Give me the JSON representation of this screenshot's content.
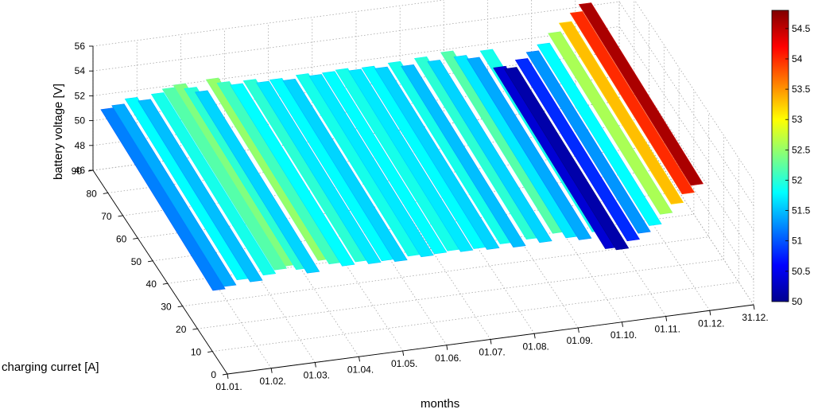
{
  "chart_data": {
    "type": "surface",
    "zlabel": "battery voltage [V]",
    "ylabel": "charging curret [A]",
    "xlabel": "months",
    "z_ticks": [
      "46",
      "48",
      "50",
      "52",
      "54",
      "56"
    ],
    "y_ticks": [
      "0",
      "10",
      "20",
      "30",
      "40",
      "50",
      "60",
      "70",
      "80",
      "90"
    ],
    "x_ticks": [
      "01.01.",
      "01.02.",
      "01.03.",
      "01.04.",
      "01.05.",
      "01.06.",
      "01.07.",
      "01.08.",
      "01.09.",
      "01.10.",
      "01.11.",
      "01.12.",
      "31.12."
    ],
    "zlim": [
      46,
      56
    ],
    "ylim": [
      0,
      90
    ],
    "colorbar": {
      "ticks": [
        "50",
        "50.5",
        "51",
        "51.5",
        "52",
        "52.5",
        "53",
        "53.5",
        "54",
        "54.5"
      ],
      "range": [
        50,
        54.8
      ],
      "colormap": "jet"
    },
    "grid": true,
    "bands": [
      {
        "month": 0.15,
        "voltage": 51.2
      },
      {
        "month": 0.4,
        "voltage": 51.4
      },
      {
        "month": 0.7,
        "voltage": 51.8
      },
      {
        "month": 1.0,
        "voltage": 51.5
      },
      {
        "month": 1.3,
        "voltage": 51.9
      },
      {
        "month": 1.55,
        "voltage": 52.2
      },
      {
        "month": 1.8,
        "voltage": 52.4
      },
      {
        "month": 2.05,
        "voltage": 52.0
      },
      {
        "month": 2.3,
        "voltage": 51.6
      },
      {
        "month": 2.55,
        "voltage": 52.5
      },
      {
        "month": 2.8,
        "voltage": 52.1
      },
      {
        "month": 3.1,
        "voltage": 51.8
      },
      {
        "month": 3.4,
        "voltage": 52.0
      },
      {
        "month": 3.7,
        "voltage": 51.7
      },
      {
        "month": 4.0,
        "voltage": 51.8
      },
      {
        "month": 4.3,
        "voltage": 51.6
      },
      {
        "month": 4.6,
        "voltage": 51.9
      },
      {
        "month": 4.9,
        "voltage": 51.7
      },
      {
        "month": 5.2,
        "voltage": 51.8
      },
      {
        "month": 5.5,
        "voltage": 51.9
      },
      {
        "month": 5.8,
        "voltage": 51.7
      },
      {
        "month": 6.1,
        "voltage": 51.8
      },
      {
        "month": 6.4,
        "voltage": 51.6
      },
      {
        "month": 6.7,
        "voltage": 51.9
      },
      {
        "month": 7.0,
        "voltage": 51.5
      },
      {
        "month": 7.3,
        "voltage": 52.0
      },
      {
        "month": 7.6,
        "voltage": 51.6
      },
      {
        "month": 7.9,
        "voltage": 52.2
      },
      {
        "month": 8.2,
        "voltage": 51.7
      },
      {
        "month": 8.5,
        "voltage": 51.4
      },
      {
        "month": 8.8,
        "voltage": 51.9
      },
      {
        "month": 9.1,
        "voltage": 50.4
      },
      {
        "month": 9.35,
        "voltage": 50.2
      },
      {
        "month": 9.6,
        "voltage": 50.8
      },
      {
        "month": 9.85,
        "voltage": 51.3
      },
      {
        "month": 10.1,
        "voltage": 51.8
      },
      {
        "month": 10.35,
        "voltage": 52.6
      },
      {
        "month": 10.6,
        "voltage": 53.3
      },
      {
        "month": 10.85,
        "voltage": 54.0
      },
      {
        "month": 11.05,
        "voltage": 54.6
      }
    ]
  }
}
